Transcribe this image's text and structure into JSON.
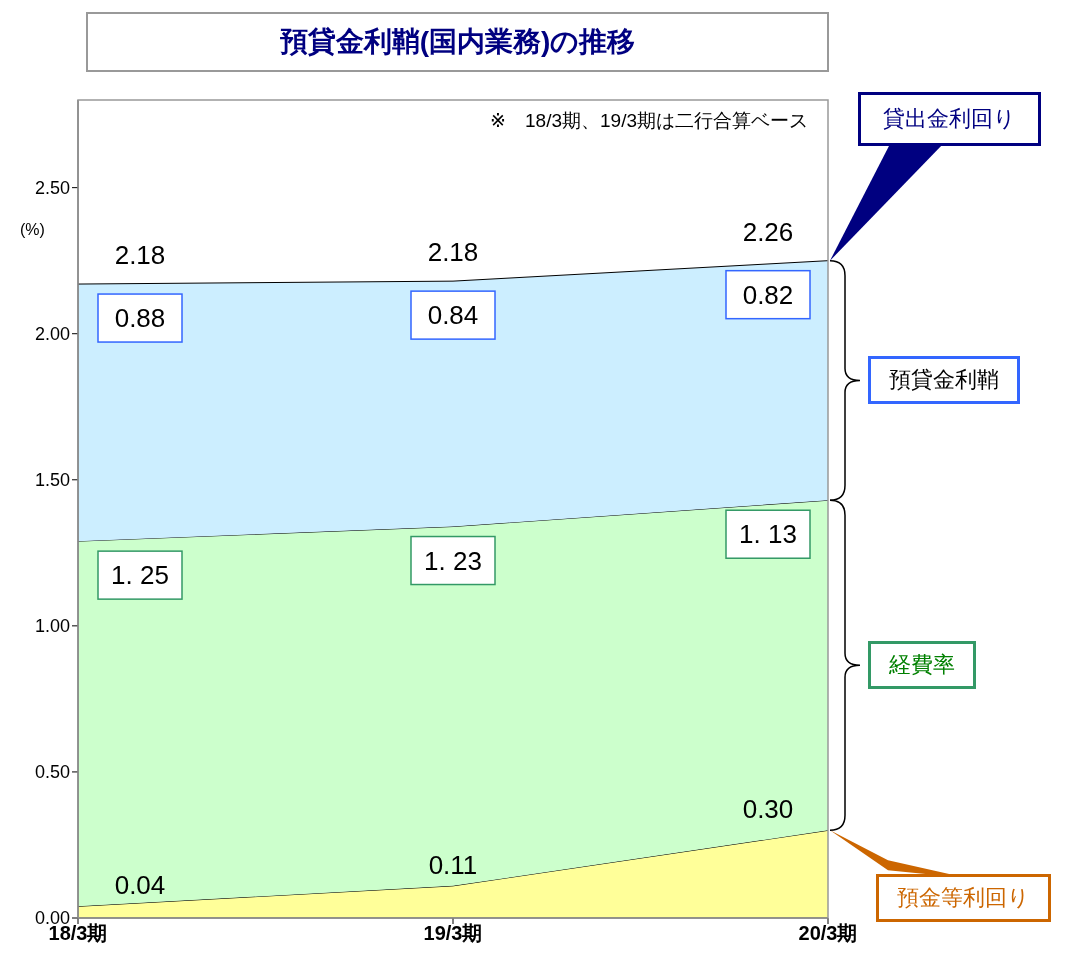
{
  "chart_data": {
    "type": "area",
    "title": "預貸金利鞘(国内業務)の推移",
    "ylabel": "(%)",
    "categories": [
      "18/3期",
      "19/3期",
      "20/3期"
    ],
    "stacked": true,
    "ylim": [
      0,
      2.8
    ],
    "yticks": [
      {
        "value": 0,
        "label": "0.00"
      },
      {
        "value": 0.5,
        "label": "0.50"
      },
      {
        "value": 1,
        "label": "1.00"
      },
      {
        "value": 1.5,
        "label": "1.50"
      },
      {
        "value": 2,
        "label": "2.00"
      },
      {
        "value": 2.5,
        "label": "2.50"
      }
    ],
    "legend": "right",
    "series": [
      {
        "name": "預金等利回り",
        "color": "#ffff99",
        "values": [
          0.04,
          0.11,
          0.3
        ],
        "value_labels": [
          "0.04",
          "0.11",
          "0.30"
        ]
      },
      {
        "name": "経費率",
        "color": "#ccffcc",
        "values": [
          1.25,
          1.23,
          1.13
        ],
        "value_labels": [
          "1. 25",
          "1. 23",
          "1. 13"
        ]
      },
      {
        "name": "預貸金利鞘",
        "color": "#cceeff",
        "values": [
          0.88,
          0.84,
          0.82
        ],
        "value_labels": [
          "0.88",
          "0.84",
          "0.82"
        ]
      }
    ],
    "totals": [
      "2.18",
      "2.18",
      "2.26"
    ],
    "annotations": [
      "※　18/3期、19/3期は二行合算ベース",
      "貸出金利回り"
    ]
  }
}
